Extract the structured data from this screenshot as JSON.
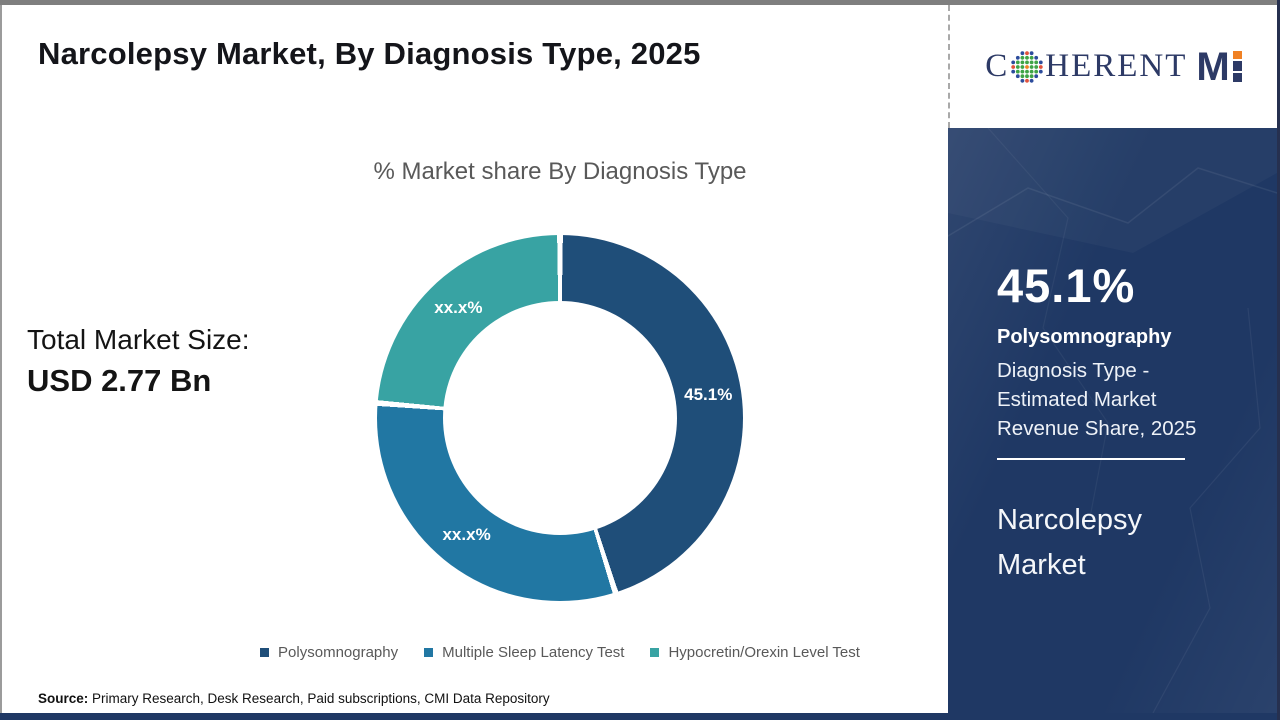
{
  "page": {
    "title": "Narcolepsy Market, By Diagnosis Type, 2025",
    "source_label": "Source:",
    "source_text": " Primary Research, Desk Research, Paid subscriptions, CMI Data Repository"
  },
  "logo": {
    "word_c": "C",
    "word_rest": "HERENT",
    "word_m": "M"
  },
  "stats": {
    "total_label": "Total Market Size:",
    "total_value": "USD 2.77 Bn"
  },
  "chart_data": {
    "type": "pie",
    "donut": true,
    "title": "% Market share By Diagnosis Type",
    "legend_position": "bottom",
    "segments": [
      {
        "name": "Polysomnography",
        "value": 45.1,
        "label": "45.1%",
        "color": "#1F4E79"
      },
      {
        "name": "Multiple Sleep Latency Test",
        "value": 31.2,
        "label": "xx.x%",
        "color": "#2177A3"
      },
      {
        "name": "Hypocretin/Orexin Level Test",
        "value": 23.7,
        "label": "xx.x%",
        "color": "#38A3A3"
      }
    ]
  },
  "side_panel": {
    "share_value": "45.1%",
    "share_segment": "Polysomnography",
    "share_desc_lines": [
      "Diagnosis Type -",
      "Estimated Market",
      "Revenue Share, 2025"
    ],
    "market_name_lines": [
      "Narcolepsy",
      "Market"
    ]
  },
  "colors": {
    "panel_background": "#1F3864",
    "top_strip": "#7F7F7F",
    "bottom_strip": "#1F3864",
    "title_text": "#14151A",
    "muted_text": "#595959",
    "logo_navy": "#2D3A66",
    "logo_orange": "#F08124",
    "logo_green": "#3FA446",
    "logo_blue": "#2C4C9C",
    "logo_red": "#E1523D"
  }
}
